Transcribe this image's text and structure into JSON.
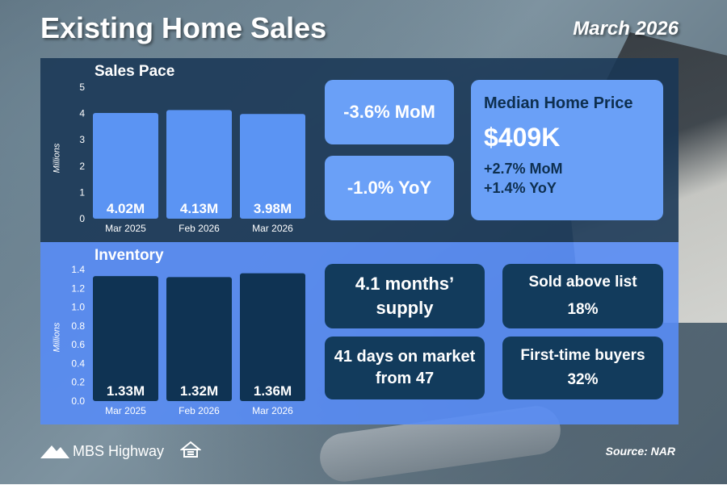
{
  "header": {
    "title": "Existing Home Sales",
    "date": "March 2026"
  },
  "colors": {
    "top_panel": "#193755",
    "bottom_panel": "#588cf5",
    "light_bar": "#5b94f3",
    "dark_bar": "#0f3353",
    "light_card": "#6aa0f7",
    "dark_card": "#123b5c"
  },
  "sales_pace": {
    "label": "Sales Pace",
    "mom_text": "-3.6% MoM",
    "yoy_text": "-1.0% YoY"
  },
  "median_price": {
    "title": "Median Home Price",
    "value": "$409K",
    "mom": "+2.7% MoM",
    "yoy": "+1.4% YoY"
  },
  "inventory": {
    "label": "Inventory",
    "months_supply": "4.1 months’ supply",
    "days_on_market": "41 days on market from 47",
    "sold_above_title": "Sold above list",
    "sold_above_value": "18%",
    "first_time_title": "First-time buyers",
    "first_time_value": "32%"
  },
  "footer": {
    "brand": "MBS Highway",
    "source": "Source: NAR",
    "housing_icon": "equal-housing-icon"
  },
  "chart_data": [
    {
      "type": "bar",
      "title": "Sales Pace",
      "ylabel": "Millions",
      "categories": [
        "Mar 2025",
        "Feb 2026",
        "Mar 2026"
      ],
      "values": [
        4.02,
        4.13,
        3.98
      ],
      "data_labels": [
        "4.02M",
        "4.13M",
        "3.98M"
      ],
      "ylim": [
        0,
        5
      ],
      "yticks": [
        "0",
        "1",
        "2",
        "3",
        "4",
        "5"
      ],
      "ytick_values": [
        0,
        1,
        2,
        3,
        4,
        5
      ],
      "grid": false
    },
    {
      "type": "bar",
      "title": "Inventory",
      "ylabel": "Millions",
      "categories": [
        "Mar 2025",
        "Feb 2026",
        "Mar 2026"
      ],
      "values": [
        1.33,
        1.32,
        1.36
      ],
      "data_labels": [
        "1.33M",
        "1.32M",
        "1.36M"
      ],
      "ylim": [
        0,
        1.4
      ],
      "yticks": [
        "0.0",
        "0.2",
        "0.4",
        "0.6",
        "0.8",
        "1.0",
        "1.2",
        "1.4"
      ],
      "ytick_values": [
        0,
        0.2,
        0.4,
        0.6,
        0.8,
        1.0,
        1.2,
        1.4
      ],
      "grid": false
    }
  ]
}
